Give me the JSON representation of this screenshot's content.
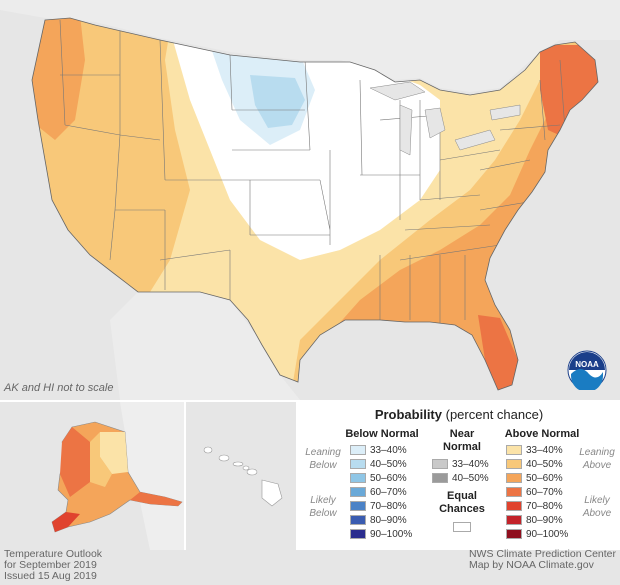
{
  "map": {
    "scale_note": "AK and HI not to scale",
    "logo_text": "NOAA"
  },
  "legend": {
    "title_bold": "Probability",
    "title_rest": " (percent chance)",
    "below": {
      "heading": "Below Normal",
      "leaning": [
        "Leaning",
        "Below"
      ],
      "likely": [
        "Likely",
        "Below"
      ],
      "items": [
        {
          "label": "33–40%",
          "color": "#dceef8"
        },
        {
          "label": "40–50%",
          "color": "#b8dcef"
        },
        {
          "label": "50–60%",
          "color": "#8fc6e6"
        },
        {
          "label": "60–70%",
          "color": "#6aa9d8"
        },
        {
          "label": "70–80%",
          "color": "#4b82c6"
        },
        {
          "label": "80–90%",
          "color": "#3a5cb0"
        },
        {
          "label": "90–100%",
          "color": "#2b2d8e"
        }
      ]
    },
    "near": {
      "heading": [
        "Near",
        "Normal"
      ],
      "items": [
        {
          "label": "33–40%",
          "color": "#c9c9c9"
        },
        {
          "label": "40–50%",
          "color": "#9a9a9a"
        }
      ]
    },
    "equal": {
      "heading": [
        "Equal",
        "Chances"
      ],
      "color": "#ffffff"
    },
    "above": {
      "heading": "Above Normal",
      "leaning": [
        "Leaning",
        "Above"
      ],
      "likely": [
        "Likely",
        "Above"
      ],
      "items": [
        {
          "label": "33–40%",
          "color": "#fbe3a8"
        },
        {
          "label": "40–50%",
          "color": "#f8c879"
        },
        {
          "label": "50–60%",
          "color": "#f4a55a"
        },
        {
          "label": "60–70%",
          "color": "#ec7444"
        },
        {
          "label": "70–80%",
          "color": "#e0432e"
        },
        {
          "label": "80–90%",
          "color": "#c3232a"
        },
        {
          "label": "90–100%",
          "color": "#8f0f1e"
        }
      ]
    }
  },
  "footer": {
    "left": [
      "Temperature Outlook",
      "for September 2019",
      "Issued 15 Aug 2019"
    ],
    "right": [
      "NWS Climate Prediction Center",
      "Map by NOAA Climate.gov"
    ]
  }
}
